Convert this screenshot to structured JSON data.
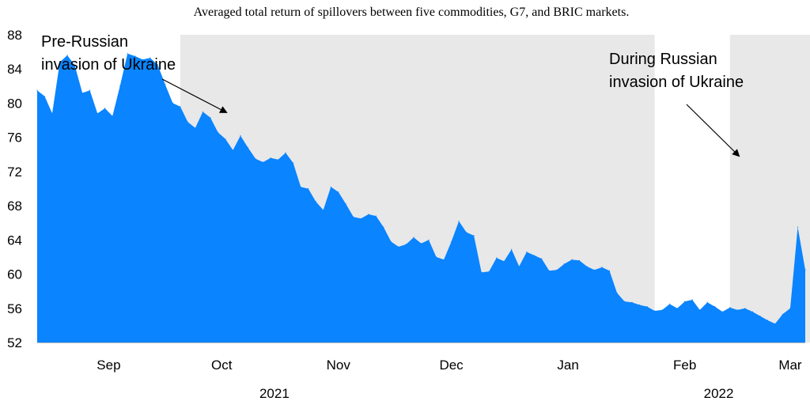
{
  "chart_data": {
    "type": "area",
    "title": "Averaged total return of spillovers between five commodities, G7, and BRIC markets.",
    "xlabel": "",
    "ylabel": "",
    "ylim": [
      52,
      88
    ],
    "yticks": [
      52,
      56,
      60,
      64,
      68,
      72,
      76,
      80,
      84,
      88
    ],
    "month_ticks": [
      {
        "label": "Sep",
        "date": "2021-09-01"
      },
      {
        "label": "Oct",
        "date": "2021-10-01"
      },
      {
        "label": "Nov",
        "date": "2021-11-01"
      },
      {
        "label": "Dec",
        "date": "2021-12-01"
      },
      {
        "label": "Jan",
        "date": "2022-01-01"
      },
      {
        "label": "Feb",
        "date": "2022-02-01"
      },
      {
        "label": "Mar",
        "date": "2022-03-01"
      }
    ],
    "year_labels": [
      {
        "label": "2021",
        "date": "2021-10-15"
      },
      {
        "label": "2022",
        "date": "2022-02-10"
      }
    ],
    "shaded_periods": [
      {
        "start": "2021-09-20",
        "end": "2022-01-24"
      },
      {
        "start": "2022-02-13",
        "end": "2022-03-07"
      }
    ],
    "annotations": [
      {
        "lines": [
          "Pre-Russian",
          "invasion of Ukraine"
        ]
      },
      {
        "lines": [
          "During Russian",
          "invasion of Ukraine"
        ]
      }
    ],
    "color": "#0a84ff",
    "series": [
      {
        "x": [
          "2021-08-13",
          "2021-08-15",
          "2021-08-17",
          "2021-08-19",
          "2021-08-21",
          "2021-08-23",
          "2021-08-25",
          "2021-08-27",
          "2021-08-29",
          "2021-08-31",
          "2021-09-02",
          "2021-09-04",
          "2021-09-06",
          "2021-09-08",
          "2021-09-10",
          "2021-09-12",
          "2021-09-14",
          "2021-09-16",
          "2021-09-18",
          "2021-09-20",
          "2021-09-22",
          "2021-09-24",
          "2021-09-26",
          "2021-09-28",
          "2021-09-30",
          "2021-10-02",
          "2021-10-04",
          "2021-10-06",
          "2021-10-08",
          "2021-10-10",
          "2021-10-12",
          "2021-10-14",
          "2021-10-16",
          "2021-10-18",
          "2021-10-20",
          "2021-10-22",
          "2021-10-24",
          "2021-10-26",
          "2021-10-28",
          "2021-10-30",
          "2021-11-01",
          "2021-11-03",
          "2021-11-05",
          "2021-11-07",
          "2021-11-09",
          "2021-11-11",
          "2021-11-13",
          "2021-11-15",
          "2021-11-17",
          "2021-11-19",
          "2021-11-21",
          "2021-11-23",
          "2021-11-25",
          "2021-11-27",
          "2021-11-29",
          "2021-12-01",
          "2021-12-03",
          "2021-12-05",
          "2021-12-07",
          "2021-12-09",
          "2021-12-11",
          "2021-12-13",
          "2021-12-15",
          "2021-12-17",
          "2021-12-19",
          "2021-12-21",
          "2021-12-23",
          "2021-12-25",
          "2021-12-27",
          "2021-12-29",
          "2021-12-31",
          "2022-01-02",
          "2022-01-04",
          "2022-01-06",
          "2022-01-08",
          "2022-01-10",
          "2022-01-12",
          "2022-01-14",
          "2022-01-16",
          "2022-01-18",
          "2022-01-20",
          "2022-01-22",
          "2022-01-24",
          "2022-01-26",
          "2022-01-28",
          "2022-01-30",
          "2022-02-01",
          "2022-02-03",
          "2022-02-05",
          "2022-02-07",
          "2022-02-09",
          "2022-02-11",
          "2022-02-13",
          "2022-02-15",
          "2022-02-17",
          "2022-02-19",
          "2022-02-21",
          "2022-02-23",
          "2022-02-25",
          "2022-02-27",
          "2022-03-01",
          "2022-03-03",
          "2022-03-05"
        ],
        "values": [
          81.5,
          80.8,
          78.8,
          84.8,
          85.6,
          84.4,
          81.2,
          81.5,
          78.8,
          79.4,
          78.5,
          82.0,
          85.8,
          85.5,
          85.1,
          85.3,
          84.5,
          82.2,
          80.0,
          79.6,
          77.8,
          77.1,
          79.0,
          78.3,
          76.6,
          75.8,
          74.5,
          76.2,
          74.8,
          73.5,
          73.1,
          73.6,
          73.4,
          74.2,
          73.0,
          70.2,
          70.0,
          68.5,
          67.5,
          70.2,
          69.6,
          68.2,
          66.7,
          66.5,
          67.0,
          66.8,
          65.5,
          63.8,
          63.2,
          63.5,
          64.3,
          63.6,
          64.0,
          62.0,
          61.7,
          63.8,
          66.2,
          64.9,
          64.5,
          60.2,
          60.3,
          61.9,
          61.5,
          62.9,
          60.9,
          62.6,
          62.2,
          61.8,
          60.4,
          60.5,
          61.2,
          61.7,
          61.6,
          60.9,
          60.5,
          60.8,
          60.4,
          57.8,
          56.8,
          56.7,
          56.4,
          56.2,
          55.7,
          55.8,
          56.5,
          56.0,
          56.8,
          57.0,
          55.8,
          56.7,
          56.2,
          55.6,
          56.1,
          55.8,
          56.0,
          55.6,
          55.1,
          54.6,
          54.2,
          55.3,
          56.0,
          65.5,
          60.5
        ]
      }
    ]
  }
}
